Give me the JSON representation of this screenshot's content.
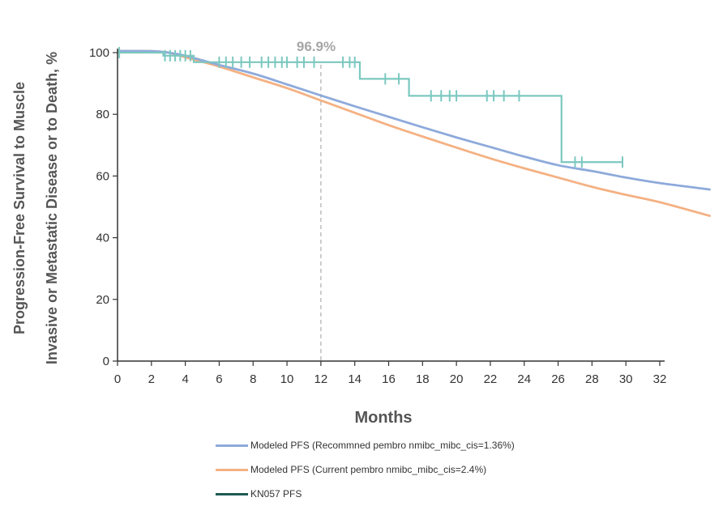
{
  "chart_data": {
    "type": "line",
    "xlabel": "Months",
    "ylabel_lines": [
      "Progression-Free Survival to Muscle",
      "Invasive or Metastatic Disease or to Death, %"
    ],
    "xlim": [
      0,
      32
    ],
    "ylim": [
      0,
      100
    ],
    "x_ticks": [
      0,
      2,
      4,
      6,
      8,
      10,
      12,
      14,
      16,
      18,
      20,
      22,
      24,
      26,
      28,
      30,
      32
    ],
    "y_ticks": [
      0,
      20,
      40,
      60,
      80,
      100
    ],
    "grid": false,
    "legend_position": "bottom",
    "annotations": [
      {
        "x": 12,
        "label": "96.9%",
        "style": "dashed vertical line"
      }
    ],
    "series": [
      {
        "name": "Modeled PFS (Recommned pembro nmibc_mibc_cis=1.36%)",
        "color": "#8eaadb",
        "kind": "line",
        "x": [
          0,
          2,
          3,
          4,
          5,
          6,
          8,
          10,
          12,
          14,
          16,
          18,
          20,
          22,
          24,
          26,
          28,
          30,
          32,
          35
        ],
        "y": [
          100.5,
          100.5,
          100,
          99,
          97.5,
          96,
          93.2,
          89.7,
          86.1,
          82.6,
          79.2,
          75.8,
          72.5,
          69.4,
          66.3,
          63.5,
          61.6,
          59.5,
          57.7,
          55.6
        ]
      },
      {
        "name": "Modeled PFS (Current pembro nmibc_mibc_cis=2.4%)",
        "color": "#f4b183",
        "kind": "line",
        "x": [
          0,
          2,
          3,
          4,
          5,
          6,
          8,
          10,
          12,
          14,
          16,
          18,
          20,
          22,
          24,
          26,
          28,
          30,
          32,
          35
        ],
        "y": [
          100.5,
          100.5,
          100,
          98.5,
          97,
          95.5,
          92,
          88.5,
          84.5,
          80.5,
          76.5,
          72.8,
          69.2,
          65.7,
          62.5,
          59.5,
          56.5,
          53.9,
          51.5,
          47
        ]
      },
      {
        "name": "KN057 PFS",
        "color": "#7cc8c0",
        "legend_color": "#1f5a55",
        "kind": "step",
        "x": [
          0,
          2.7,
          4.5,
          14.3,
          17.2,
          26.2,
          29.8
        ],
        "y": [
          100,
          99,
          96.9,
          91.5,
          86,
          64.5,
          64.5
        ],
        "censor_x": [
          0.1,
          2.8,
          3.1,
          3.4,
          3.7,
          4.0,
          4.3,
          6.0,
          6.4,
          6.8,
          7.3,
          7.8,
          8.5,
          8.9,
          9.3,
          9.7,
          10.0,
          10.6,
          11.0,
          11.6,
          13.3,
          13.7,
          14.0,
          15.8,
          16.6,
          18.5,
          19.1,
          19.6,
          20.0,
          21.8,
          22.2,
          22.8,
          23.7,
          27.0,
          27.4,
          29.8
        ]
      }
    ]
  }
}
